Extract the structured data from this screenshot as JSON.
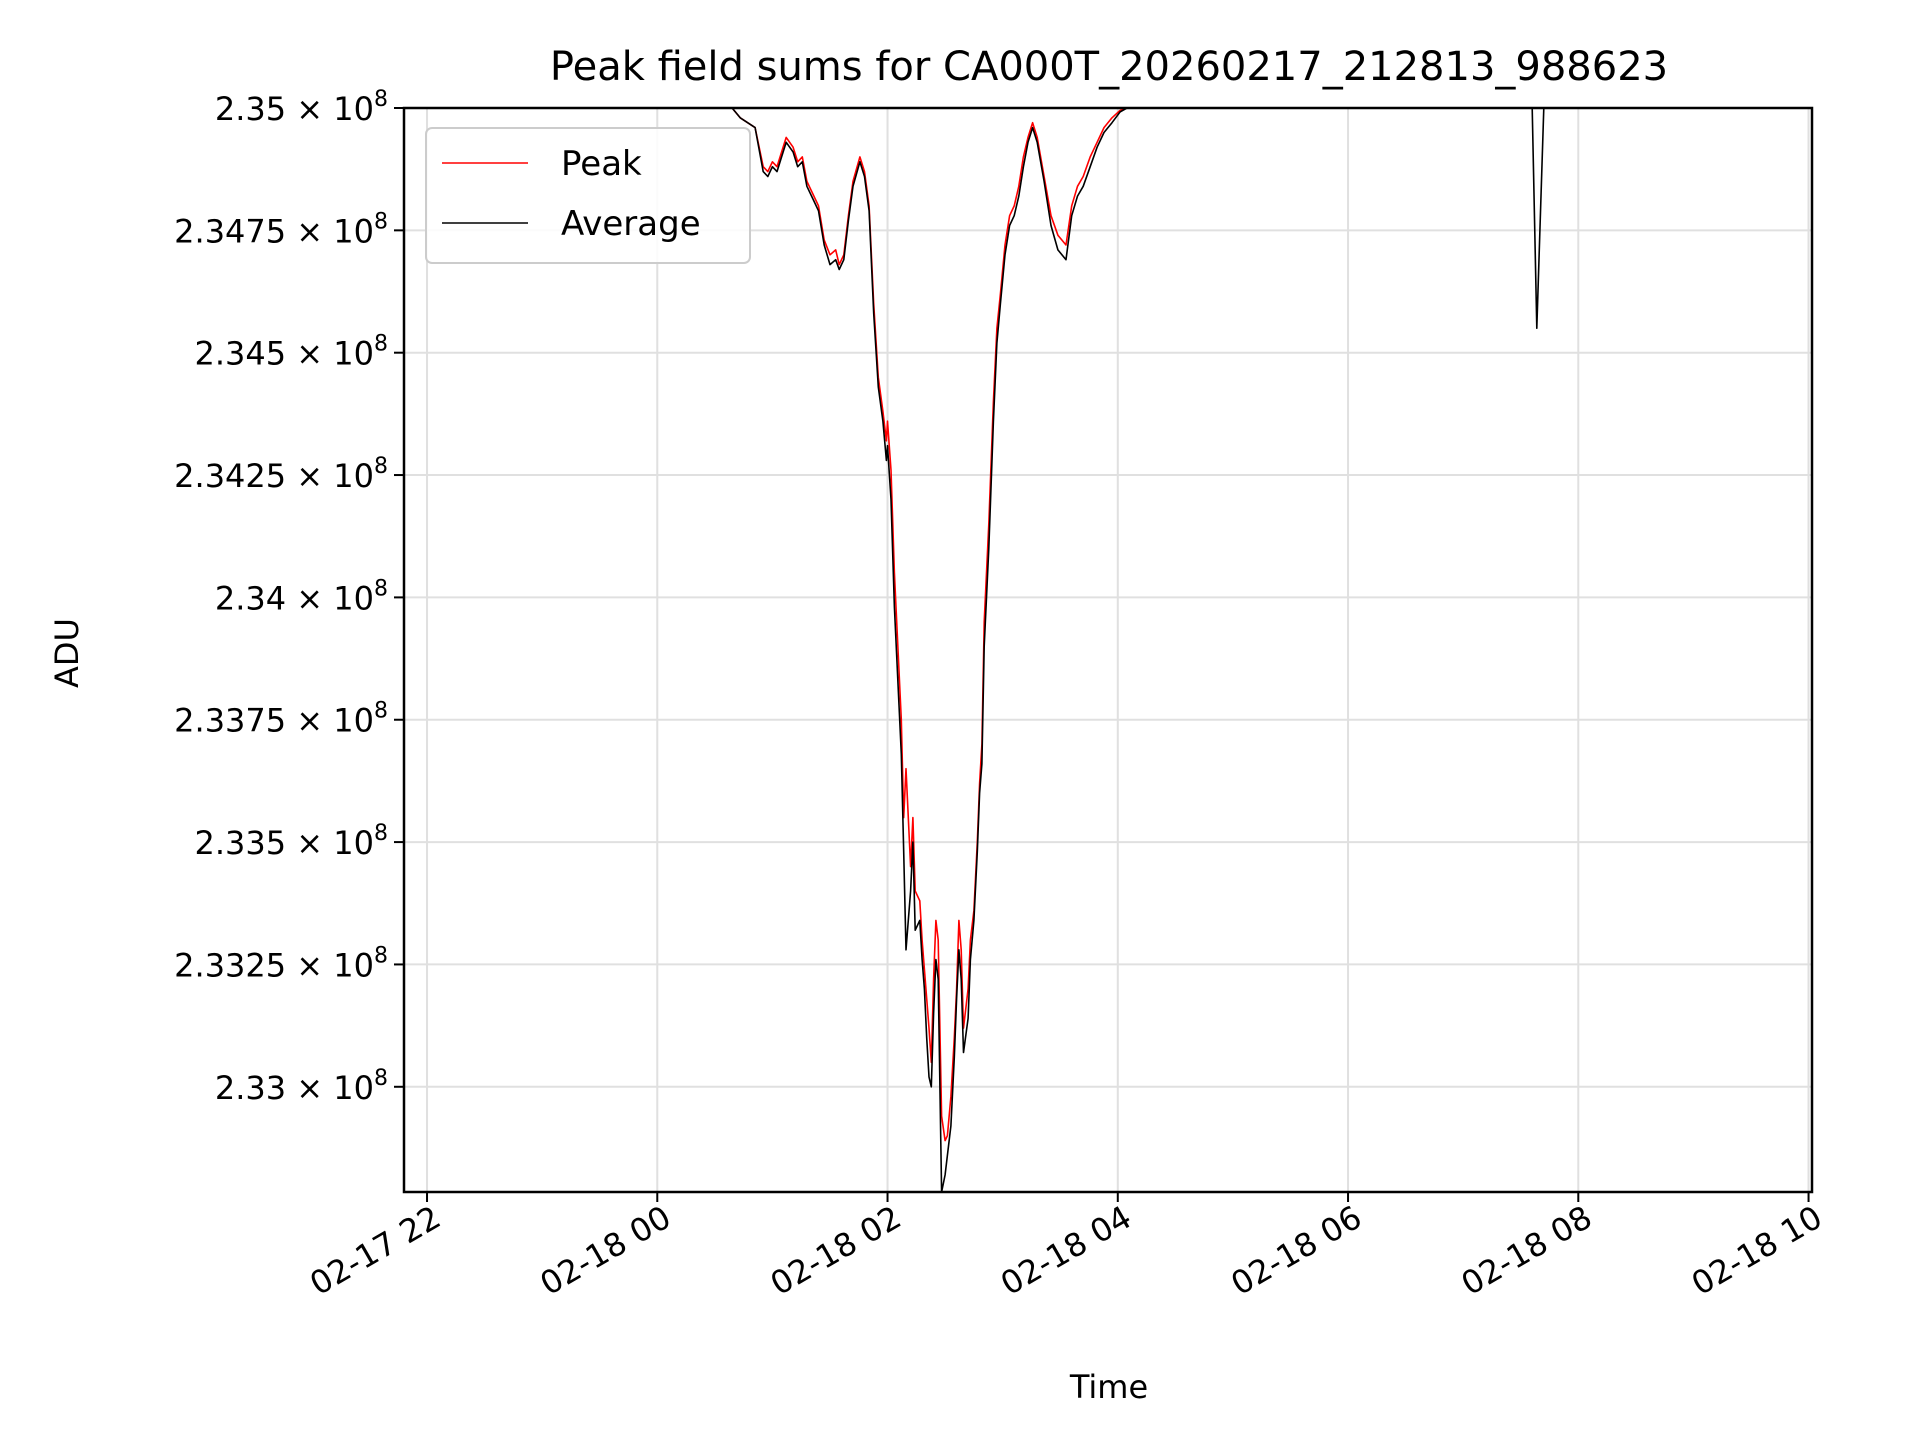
{
  "chart_data": {
    "type": "line",
    "title": "Peak field sums for CA000T_20260217_212813_988623",
    "xlabel": "Time",
    "ylabel": "ADU",
    "x_unit": "hours since 02-18 00:00",
    "xlim": [
      -2.2,
      10.03
    ],
    "ylim": [
      232785000.0,
      235000000.0
    ],
    "grid": true,
    "legend_position": "top-left",
    "x_ticks": [
      {
        "value": -2,
        "label": "02-17 22"
      },
      {
        "value": 0,
        "label": "02-18 00"
      },
      {
        "value": 2,
        "label": "02-18 02"
      },
      {
        "value": 4,
        "label": "02-18 04"
      },
      {
        "value": 6,
        "label": "02-18 06"
      },
      {
        "value": 8,
        "label": "02-18 08"
      },
      {
        "value": 10,
        "label": "02-18 10"
      }
    ],
    "y_ticks": [
      {
        "value": 233000000.0,
        "mantissa": "2.33"
      },
      {
        "value": 233250000.0,
        "mantissa": "2.3325"
      },
      {
        "value": 233500000.0,
        "mantissa": "2.335"
      },
      {
        "value": 233750000.0,
        "mantissa": "2.3375"
      },
      {
        "value": 234000000.0,
        "mantissa": "2.34"
      },
      {
        "value": 234250000.0,
        "mantissa": "2.3425"
      },
      {
        "value": 234500000.0,
        "mantissa": "2.345"
      },
      {
        "value": 234750000.0,
        "mantissa": "2.3475"
      },
      {
        "value": 235000000.0,
        "mantissa": "2.35"
      }
    ],
    "y_tick_times": "×",
    "y_tick_base": "10",
    "y_tick_exponent": "8",
    "series": [
      {
        "name": "Peak",
        "color": "#ff0000",
        "x": [
          0.65,
          0.72,
          0.85,
          0.92,
          0.96,
          1.0,
          1.04,
          1.08,
          1.12,
          1.18,
          1.22,
          1.26,
          1.3,
          1.36,
          1.4,
          1.45,
          1.5,
          1.55,
          1.58,
          1.62,
          1.66,
          1.7,
          1.76,
          1.8,
          1.84,
          1.88,
          1.92,
          1.96,
          1.99,
          2.0,
          2.03,
          2.06,
          2.1,
          2.12,
          2.14,
          2.16,
          2.2,
          2.22,
          2.24,
          2.28,
          2.3,
          2.32,
          2.34,
          2.36,
          2.38,
          2.4,
          2.42,
          2.44,
          2.47,
          2.5,
          2.52,
          2.55,
          2.58,
          2.6,
          2.62,
          2.64,
          2.66,
          2.7,
          2.72,
          2.75,
          2.78,
          2.8,
          2.82,
          2.84,
          2.88,
          2.92,
          2.95,
          2.98,
          3.02,
          3.06,
          3.1,
          3.14,
          3.18,
          3.22,
          3.26,
          3.3,
          3.36,
          3.42,
          3.48,
          3.55,
          3.6,
          3.65,
          3.7,
          3.76,
          3.82,
          3.88,
          3.95,
          4.02,
          4.08,
          4.12,
          4.2,
          4.3,
          4.4,
          4.6,
          5.0,
          6.0,
          7.0,
          7.6,
          7.64,
          7.7,
          8.5,
          10.03
        ],
        "y": [
          235000000.0,
          234980000.0,
          234960000.0,
          234880000.0,
          234870000.0,
          234890000.0,
          234880000.0,
          234910000.0,
          234940000.0,
          234920000.0,
          234890000.0,
          234900000.0,
          234850000.0,
          234820000.0,
          234800000.0,
          234730000.0,
          234700000.0,
          234710000.0,
          234680000.0,
          234700000.0,
          234780000.0,
          234850000.0,
          234900000.0,
          234870000.0,
          234800000.0,
          234600000.0,
          234450000.0,
          234380000.0,
          234320000.0,
          234360000.0,
          234260000.0,
          234050000.0,
          233850000.0,
          233750000.0,
          233550000.0,
          233650000.0,
          233450000.0,
          233550000.0,
          233400000.0,
          233380000.0,
          233300000.0,
          233240000.0,
          233180000.0,
          233120000.0,
          233050000.0,
          233220000.0,
          233340000.0,
          233300000.0,
          232940000.0,
          232890000.0,
          232900000.0,
          232980000.0,
          233100000.0,
          233200000.0,
          233340000.0,
          233280000.0,
          233120000.0,
          233200000.0,
          233300000.0,
          233360000.0,
          233500000.0,
          233620000.0,
          233700000.0,
          233950000.0,
          234150000.0,
          234400000.0,
          234550000.0,
          234620000.0,
          234720000.0,
          234780000.0,
          234800000.0,
          234840000.0,
          234900000.0,
          234940000.0,
          234970000.0,
          234940000.0,
          234860000.0,
          234780000.0,
          234740000.0,
          234720000.0,
          234800000.0,
          234840000.0,
          234860000.0,
          234900000.0,
          234930000.0,
          234960000.0,
          234980000.0,
          234995000.0,
          235000000.0,
          235000000.0,
          235000000.0,
          235000000.0,
          235000000.0,
          235000000.0,
          235000000.0,
          235000000.0,
          235000000.0,
          235000000.0,
          235000000.0,
          235000000.0,
          235000000.0,
          235000000.0
        ]
      },
      {
        "name": "Average",
        "color": "#000000",
        "x": [
          0.65,
          0.72,
          0.85,
          0.92,
          0.96,
          1.0,
          1.04,
          1.08,
          1.12,
          1.18,
          1.22,
          1.26,
          1.3,
          1.36,
          1.4,
          1.45,
          1.5,
          1.55,
          1.58,
          1.62,
          1.66,
          1.7,
          1.76,
          1.8,
          1.84,
          1.88,
          1.92,
          1.96,
          1.99,
          2.0,
          2.03,
          2.06,
          2.1,
          2.12,
          2.14,
          2.16,
          2.2,
          2.22,
          2.24,
          2.28,
          2.3,
          2.32,
          2.34,
          2.36,
          2.38,
          2.4,
          2.42,
          2.44,
          2.47,
          2.5,
          2.52,
          2.55,
          2.58,
          2.6,
          2.62,
          2.64,
          2.66,
          2.7,
          2.72,
          2.75,
          2.78,
          2.8,
          2.82,
          2.84,
          2.88,
          2.92,
          2.95,
          2.98,
          3.02,
          3.06,
          3.1,
          3.14,
          3.18,
          3.22,
          3.26,
          3.3,
          3.36,
          3.42,
          3.48,
          3.55,
          3.6,
          3.65,
          3.7,
          3.76,
          3.82,
          3.88,
          3.95,
          4.02,
          4.08,
          4.12,
          4.2,
          4.3,
          4.4,
          4.6,
          5.0,
          6.0,
          7.0,
          7.6,
          7.64,
          7.7,
          8.5,
          10.03
        ],
        "y": [
          235000000.0,
          234980000.0,
          234960000.0,
          234870000.0,
          234860000.0,
          234880000.0,
          234870000.0,
          234900000.0,
          234930000.0,
          234910000.0,
          234880000.0,
          234890000.0,
          234840000.0,
          234810000.0,
          234790000.0,
          234720000.0,
          234680000.0,
          234690000.0,
          234670000.0,
          234690000.0,
          234770000.0,
          234840000.0,
          234890000.0,
          234860000.0,
          234790000.0,
          234580000.0,
          234430000.0,
          234360000.0,
          234280000.0,
          234310000.0,
          234200000.0,
          233980000.0,
          233780000.0,
          233680000.0,
          233480000.0,
          233280000.0,
          233400000.0,
          233500000.0,
          233320000.0,
          233340000.0,
          233260000.0,
          233200000.0,
          233100000.0,
          233020000.0,
          233000000.0,
          233150000.0,
          233260000.0,
          233220000.0,
          232785000.0,
          232820000.0,
          232860000.0,
          232920000.0,
          233060000.0,
          233180000.0,
          233280000.0,
          233220000.0,
          233070000.0,
          233140000.0,
          233260000.0,
          233340000.0,
          233480000.0,
          233600000.0,
          233660000.0,
          233900000.0,
          234100000.0,
          234360000.0,
          234520000.0,
          234600000.0,
          234700000.0,
          234760000.0,
          234780000.0,
          234820000.0,
          234880000.0,
          234930000.0,
          234960000.0,
          234930000.0,
          234850000.0,
          234760000.0,
          234710000.0,
          234690000.0,
          234780000.0,
          234820000.0,
          234840000.0,
          234880000.0,
          234920000.0,
          234950000.0,
          234970000.0,
          234992000.0,
          235000000.0,
          235000000.0,
          235000000.0,
          235000000.0,
          235000000.0,
          235000000.0,
          235000000.0,
          235000000.0,
          235000000.0,
          235000000.0,
          234550000.0,
          235000000.0,
          235000000.0,
          235000000.0
        ]
      }
    ]
  }
}
